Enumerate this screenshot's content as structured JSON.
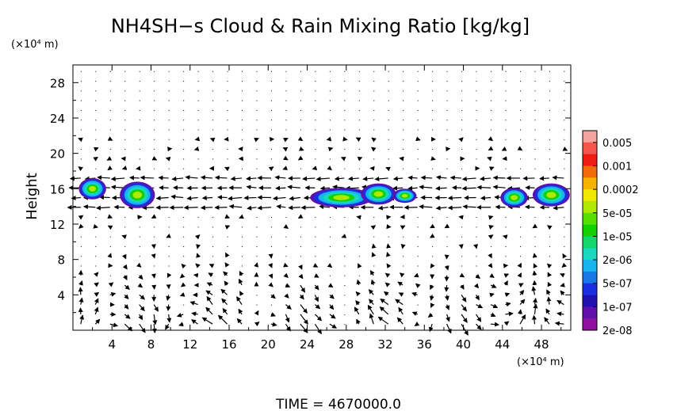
{
  "chart_data": {
    "type": "heatmap",
    "title": "NH4SH−s Cloud & Rain Mixing Ratio [kg/kg]",
    "ylabel": "Height",
    "y_unit": "(×10⁴ m)",
    "x_unit": "(×10⁴ m)",
    "xlim": [
      0,
      51
    ],
    "ylim": [
      0,
      30
    ],
    "x_ticks": [
      "4",
      "8",
      "12",
      "16",
      "20",
      "24",
      "28",
      "32",
      "36",
      "40",
      "44",
      "48"
    ],
    "y_ticks": [
      "4",
      "8",
      "12",
      "16",
      "20",
      "24",
      "28"
    ],
    "colorbar": {
      "labels": [
        "0.005",
        "0.001",
        "0.0002",
        "5e-05",
        "1e-05",
        "2e-06",
        "5e-07",
        "1e-07",
        "2e-08"
      ],
      "colors": [
        "#f4a3a0",
        "#f4564c",
        "#ee1c12",
        "#f26a0a",
        "#f7b200",
        "#f0e800",
        "#b0e800",
        "#55e000",
        "#13d000",
        "#12d86c",
        "#18d8c0",
        "#18b4f0",
        "#1878e8",
        "#1a30e0",
        "#2010b0",
        "#6010a8",
        "#9010a0"
      ]
    },
    "series": [
      {
        "values": [
          [
            2.0,
            16.0,
            1.4,
            1.2
          ],
          [
            6.6,
            15.3,
            1.8,
            1.5
          ],
          [
            27.5,
            15.0,
            3.2,
            1.1
          ],
          [
            31.3,
            15.4,
            1.8,
            1.2
          ],
          [
            34.0,
            15.2,
            1.2,
            0.8
          ],
          [
            45.2,
            15.0,
            1.4,
            1.1
          ],
          [
            49.0,
            15.3,
            1.9,
            1.3
          ]
        ]
      }
    ]
  },
  "footer": {
    "time": "TIME  =  4670000.0"
  }
}
